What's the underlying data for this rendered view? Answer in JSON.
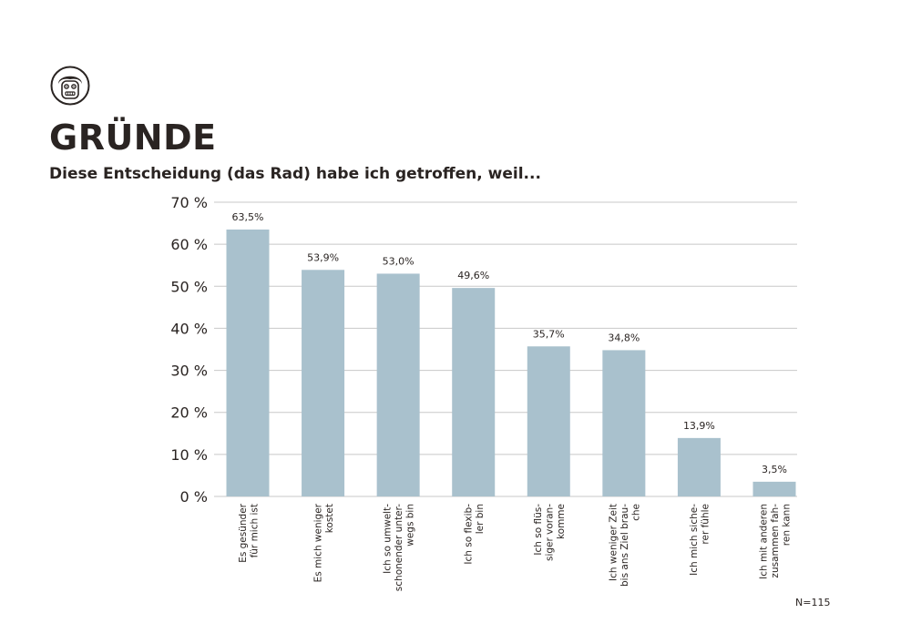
{
  "header": {
    "logo_icon": "cartoon-face-icon",
    "title": "GRÜNDE",
    "subtitle": "Diese Entscheidung (das Rad) habe ich getroffen, weil..."
  },
  "note": "N=115",
  "colors": {
    "bar": "#a9c1cd",
    "grid": "#c8c8c8",
    "text": "#2a2422"
  },
  "chart_data": {
    "type": "bar",
    "ylim": [
      0,
      70
    ],
    "yticks": [
      0,
      10,
      20,
      30,
      40,
      50,
      60,
      70
    ],
    "ytick_labels": [
      "0 %",
      "10 %",
      "20 %",
      "30 %",
      "40 %",
      "50 %",
      "60 %",
      "70 %"
    ],
    "grid": true,
    "categories": [
      [
        "Es gesünder",
        "für mich ist"
      ],
      [
        "Es mich weniger",
        "kostet"
      ],
      [
        "Ich so umwelt-",
        "schonender unter-",
        "wegs bin"
      ],
      [
        "Ich so flexib-",
        "ler bin"
      ],
      [
        "Ich so flüs-",
        "siger voran-",
        "komme"
      ],
      [
        "Ich  weniger Zeit",
        "bis ans Ziel brau-",
        "che"
      ],
      [
        "Ich mich siche-",
        "rer fühle"
      ],
      [
        "Ich mit anderen",
        "zusammen fah-",
        "ren kann"
      ]
    ],
    "values": [
      63.5,
      53.9,
      53.0,
      49.6,
      35.7,
      34.8,
      13.9,
      3.5
    ],
    "value_labels": [
      "63,5%",
      "53,9%",
      "53,0%",
      "49,6%",
      "35,7%",
      "34,8%",
      "13,9%",
      "3,5%"
    ]
  }
}
